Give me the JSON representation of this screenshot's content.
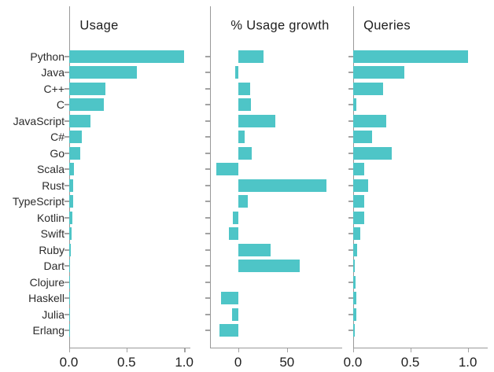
{
  "chart_data": {
    "type": "bar",
    "orientation": "horizontal",
    "grid": false,
    "legend": false,
    "categories": [
      "Python",
      "Java",
      "C++",
      "C",
      "JavaScript",
      "C#",
      "Go",
      "Scala",
      "Rust",
      "TypeScript",
      "Kotlin",
      "Swift",
      "Ruby",
      "Dart",
      "Clojure",
      "Haskell",
      "Julia",
      "Erlang"
    ],
    "series": [
      {
        "name": "Usage",
        "values": [
          1.0,
          0.59,
          0.32,
          0.3,
          0.19,
          0.11,
          0.1,
          0.045,
          0.04,
          0.04,
          0.034,
          0.027,
          0.018,
          0.009,
          0.004,
          0.004,
          0.003,
          0.003
        ]
      },
      {
        "name": "% Usage growth",
        "values": [
          26,
          -3,
          12,
          13,
          38,
          7,
          14,
          -22,
          90,
          10,
          -5,
          -9,
          33,
          63,
          0,
          -17,
          -6,
          -19
        ]
      },
      {
        "name": "Queries",
        "values": [
          1.0,
          0.445,
          0.26,
          0.032,
          0.29,
          0.17,
          0.34,
          0.1,
          0.135,
          0.098,
          0.098,
          0.068,
          0.041,
          0.018,
          0.027,
          0.03,
          0.03,
          0.014
        ]
      }
    ],
    "panels": [
      {
        "title": "Usage",
        "xlim": [
          0,
          1.05
        ],
        "xticks": [
          0,
          0.5,
          1
        ],
        "xtick_labels": [
          "0.0",
          "0.5",
          "1.0"
        ]
      },
      {
        "title": "% Usage growth",
        "xlim": [
          -29,
          106
        ],
        "xticks": [
          0,
          50
        ],
        "xtick_labels": [
          "0",
          "50"
        ]
      },
      {
        "title": "Queries",
        "xlim": [
          0,
          1.17
        ],
        "xticks": [
          0,
          0.5,
          1
        ],
        "xtick_labels": [
          "0.0",
          "0.5",
          "1.0"
        ]
      }
    ],
    "colors": {
      "bar": "#4ec5c7",
      "axis": "#999999",
      "label": "#2b2b2b",
      "tick_label": "#1f1f1f"
    }
  }
}
